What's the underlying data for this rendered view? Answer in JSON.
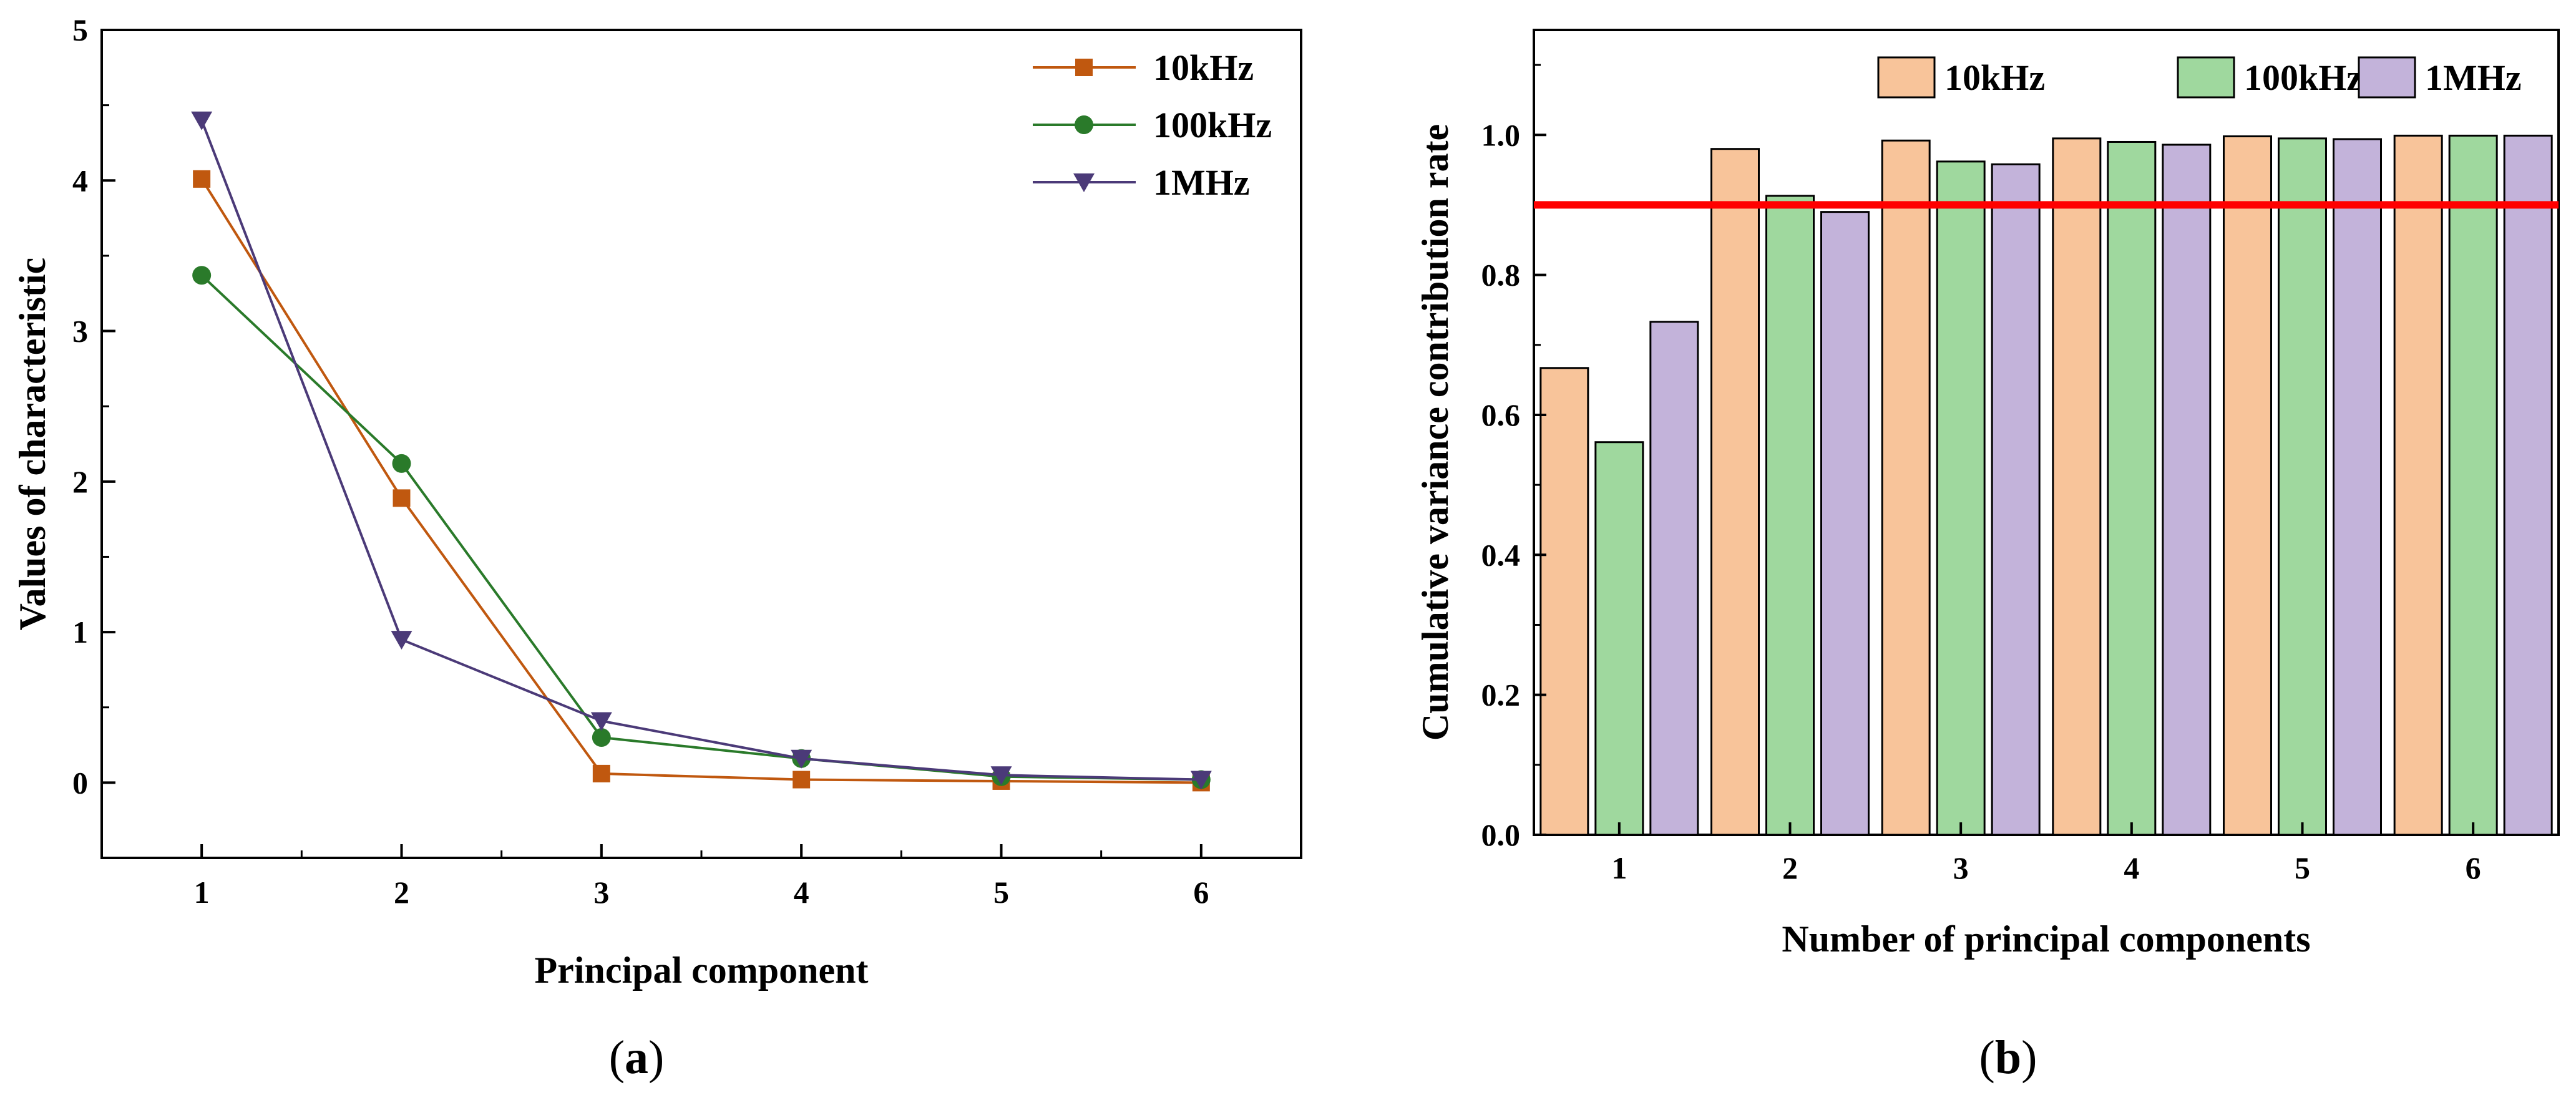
{
  "captions": {
    "open": "(",
    "a": "a",
    "b": "b",
    "close": ")"
  },
  "chart_data": [
    {
      "type": "line",
      "xlabel": "Principal component",
      "ylabel": "Values of characteristic",
      "x": [
        1,
        2,
        3,
        4,
        5,
        6
      ],
      "xlim": [
        0.5,
        6.5
      ],
      "ylim": [
        -0.5,
        5
      ],
      "yticks": [
        0,
        1,
        2,
        3,
        4,
        5
      ],
      "legend_position": "top-right",
      "series": [
        {
          "name": "10kHz",
          "color": "#c0580f",
          "marker": "square",
          "values": [
            4.01,
            1.89,
            0.06,
            0.02,
            0.01,
            0.0
          ]
        },
        {
          "name": "100kHz",
          "color": "#2a7a2a",
          "marker": "circle",
          "values": [
            3.37,
            2.12,
            0.3,
            0.16,
            0.04,
            0.02
          ]
        },
        {
          "name": "1MHz",
          "color": "#4b3a78",
          "marker": "triangle-down",
          "values": [
            4.4,
            0.95,
            0.41,
            0.16,
            0.05,
            0.02
          ]
        }
      ]
    },
    {
      "type": "bar",
      "xlabel": "Number of principal components",
      "ylabel": "Cumulative variance contribution rate",
      "categories": [
        "1",
        "2",
        "3",
        "4",
        "5",
        "6"
      ],
      "ylim": [
        0,
        1.15
      ],
      "yticks": [
        "0.0",
        "0.2",
        "0.4",
        "0.6",
        "0.8",
        "1.0"
      ],
      "reference_line": {
        "y": 0.9,
        "color": "#ff0000"
      },
      "legend_position": "top",
      "series": [
        {
          "name": "10kHz",
          "color": "#f8c49a",
          "values": [
            0.667,
            0.98,
            0.992,
            0.995,
            0.998,
            0.999
          ]
        },
        {
          "name": "100kHz",
          "color": "#9fd89e",
          "values": [
            0.561,
            0.913,
            0.962,
            0.99,
            0.995,
            0.999
          ]
        },
        {
          "name": "1MHz",
          "color": "#c3b3da",
          "values": [
            0.733,
            0.89,
            0.958,
            0.986,
            0.994,
            0.999
          ]
        }
      ]
    }
  ]
}
